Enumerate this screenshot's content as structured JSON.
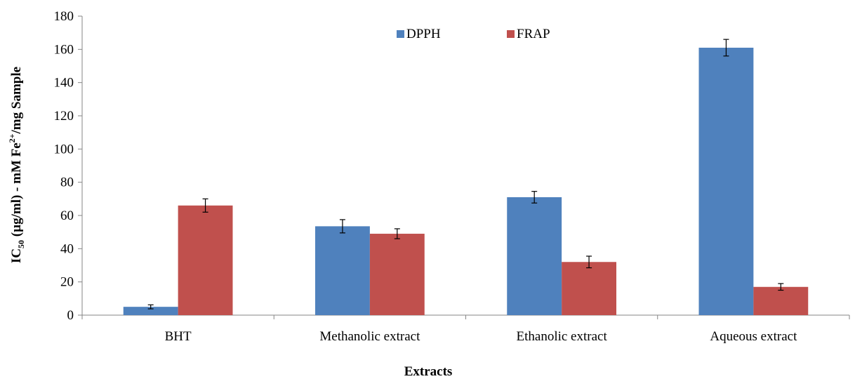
{
  "chart_data": {
    "type": "bar",
    "categories": [
      "BHT",
      "Methanolic extract",
      "Ethanolic extract",
      "Aqueous extract"
    ],
    "series": [
      {
        "name": "DPPH",
        "color": "#4F81BD",
        "values": [
          5,
          53.5,
          71,
          161
        ],
        "errors": [
          1.2,
          4,
          3.5,
          5
        ]
      },
      {
        "name": "FRAP",
        "color": "#C0504D",
        "values": [
          66,
          49,
          32,
          17
        ],
        "errors": [
          4,
          3,
          3.5,
          2
        ]
      }
    ],
    "xlabel": "Extracts",
    "ylabel": {
      "part1": "IC",
      "sub": "50",
      "part2": " (µg/ml) - mM Fe",
      "sup": "2+",
      "part3": "/mg Sample"
    },
    "ylim": [
      0,
      180
    ],
    "yticks": [
      0,
      20,
      40,
      60,
      80,
      100,
      120,
      140,
      160,
      180
    ],
    "grid": false,
    "legend_position": "top-center"
  }
}
